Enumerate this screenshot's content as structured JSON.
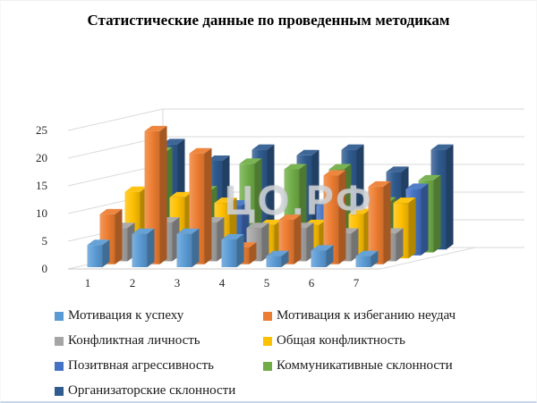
{
  "title": "Статистические данные по проведенным методикам",
  "watermark": "ЦО.РФ",
  "chart_data": {
    "type": "bar",
    "projection": "3d-column",
    "title": "Статистические данные по проведенным методикам",
    "categories": [
      "1",
      "2",
      "3",
      "4",
      "5",
      "6",
      "7"
    ],
    "series": [
      {
        "name": "Мотивация к успеху",
        "color": "#5B9BD5",
        "values": [
          4,
          6,
          6,
          5,
          2,
          3,
          2
        ]
      },
      {
        "name": "Мотивация к избеганию неудач",
        "color": "#ED7D31",
        "values": [
          9,
          24,
          20,
          3,
          8,
          16,
          14
        ]
      },
      {
        "name": "Конфликтная личность",
        "color": "#A5A5A5",
        "values": [
          6,
          7,
          7,
          6,
          6,
          5,
          5
        ]
      },
      {
        "name": "Общая конфликтность",
        "color": "#FFC000",
        "values": [
          12,
          11,
          10,
          6,
          6,
          8,
          10
        ]
      },
      {
        "name": "Позитвная агрессивность",
        "color": "#4472C4",
        "values": [
          6,
          8,
          9,
          5,
          9,
          7,
          12
        ]
      },
      {
        "name": "Коммуникативные склонности",
        "color": "#70AD47",
        "values": [
          18,
          11,
          16,
          15,
          15,
          9,
          13
        ]
      },
      {
        "name": "Организаторские склонности",
        "color": "#2F5B8F",
        "values": [
          19,
          16,
          18,
          17,
          18,
          14,
          18
        ]
      }
    ],
    "xlabel": "",
    "ylabel": "",
    "ylim": [
      0,
      25
    ],
    "ytick_step": 5,
    "grid": true,
    "legend_position": "bottom"
  }
}
